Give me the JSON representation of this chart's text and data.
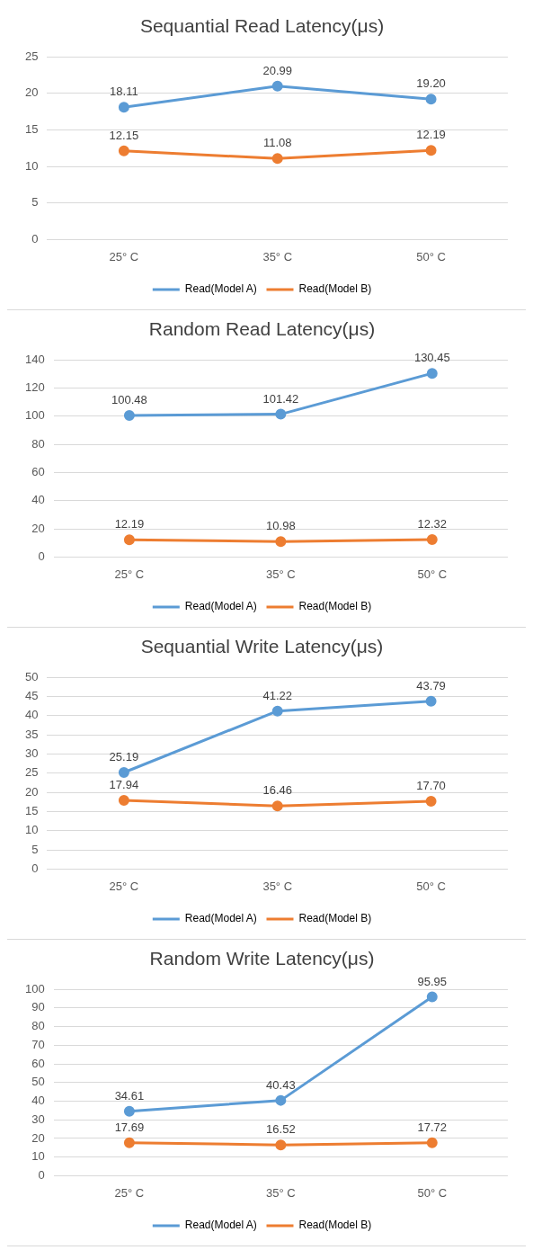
{
  "chart_data": [
    {
      "type": "line",
      "title": "Sequantial Read Latency(μs)",
      "categories": [
        "25° C",
        "35° C",
        "50° C"
      ],
      "ylim": [
        0,
        25
      ],
      "yticks": [
        0,
        5,
        10,
        15,
        20,
        25
      ],
      "grid": "y",
      "legend": "bottom",
      "marker": "circle",
      "series": [
        {
          "name": "Read(Model A)",
          "color": "#5b9bd5",
          "values": [
            18.11,
            20.99,
            19.2
          ],
          "value_labels": [
            "18.11",
            "20.99",
            "19.20"
          ]
        },
        {
          "name": "Read(Model B)",
          "color": "#ed7d31",
          "values": [
            12.15,
            11.08,
            12.19
          ],
          "value_labels": [
            "12.15",
            "11.08",
            "12.19"
          ]
        }
      ]
    },
    {
      "type": "line",
      "title": "Random Read Latency(μs)",
      "categories": [
        "25° C",
        "35° C",
        "50° C"
      ],
      "ylim": [
        0,
        140
      ],
      "yticks": [
        0,
        20,
        40,
        60,
        80,
        100,
        120,
        140
      ],
      "grid": "y",
      "legend": "bottom",
      "marker": "circle",
      "series": [
        {
          "name": "Read(Model A)",
          "color": "#5b9bd5",
          "values": [
            100.48,
            101.42,
            130.45
          ],
          "value_labels": [
            "100.48",
            "101.42",
            "130.45"
          ]
        },
        {
          "name": "Read(Model B)",
          "color": "#ed7d31",
          "values": [
            12.19,
            10.98,
            12.32
          ],
          "value_labels": [
            "12.19",
            "10.98",
            "12.32"
          ]
        }
      ]
    },
    {
      "type": "line",
      "title": "Sequantial Write Latency(μs)",
      "categories": [
        "25° C",
        "35° C",
        "50° C"
      ],
      "ylim": [
        0,
        50
      ],
      "yticks": [
        0,
        5,
        10,
        15,
        20,
        25,
        30,
        35,
        40,
        45,
        50
      ],
      "grid": "y",
      "legend": "bottom",
      "marker": "circle",
      "series": [
        {
          "name": "Read(Model A)",
          "color": "#5b9bd5",
          "values": [
            25.19,
            41.22,
            43.79
          ],
          "value_labels": [
            "25.19",
            "41.22",
            "43.79"
          ]
        },
        {
          "name": "Read(Model B)",
          "color": "#ed7d31",
          "values": [
            17.94,
            16.46,
            17.7
          ],
          "value_labels": [
            "17.94",
            "16.46",
            "17.70"
          ]
        }
      ]
    },
    {
      "type": "line",
      "title": "Random Write Latency(μs)",
      "categories": [
        "25° C",
        "35° C",
        "50° C"
      ],
      "ylim": [
        0,
        100
      ],
      "yticks": [
        0,
        10,
        20,
        30,
        40,
        50,
        60,
        70,
        80,
        90,
        100
      ],
      "grid": "y",
      "legend": "bottom",
      "marker": "circle",
      "series": [
        {
          "name": "Read(Model A)",
          "color": "#5b9bd5",
          "values": [
            34.61,
            40.43,
            95.95
          ],
          "value_labels": [
            "34.61",
            "40.43",
            "95.95"
          ]
        },
        {
          "name": "Read(Model B)",
          "color": "#ed7d31",
          "values": [
            17.69,
            16.52,
            17.72
          ],
          "value_labels": [
            "17.69",
            "16.52",
            "17.72"
          ]
        }
      ]
    }
  ]
}
